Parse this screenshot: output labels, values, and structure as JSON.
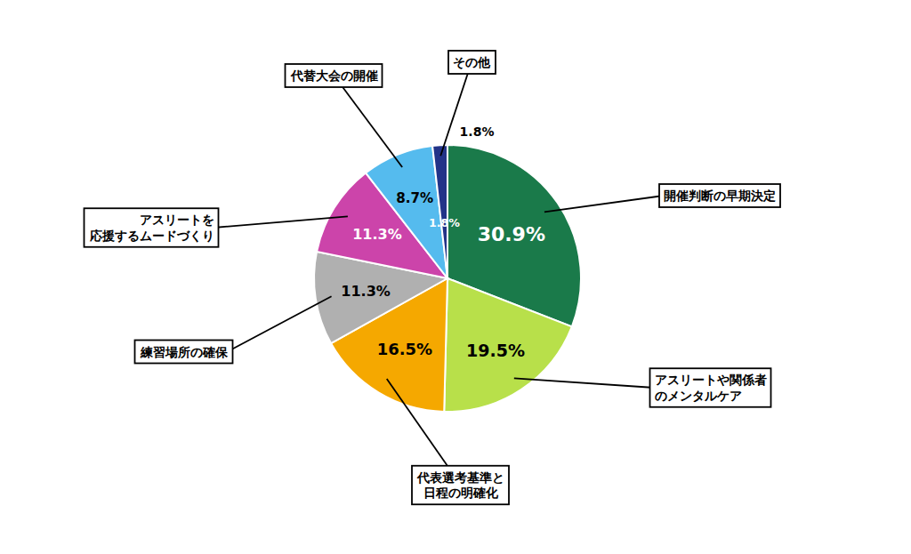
{
  "chart_data": {
    "type": "pie",
    "categories": [
      "開催判断の早期決定",
      "アスリートや関係者\nのメンタルケア",
      "代表選考基準と\n日程の明確化",
      "練習場所の確保",
      "アスリートを\n応援するムードづくり",
      "代替大会の開催",
      "その他"
    ],
    "values": [
      30.9,
      19.5,
      16.5,
      11.3,
      11.3,
      8.7,
      1.8
    ],
    "value_labels": [
      "30.9%",
      "19.5%",
      "16.5%",
      "11.3%",
      "11.3%",
      "8.7%",
      "1.8%"
    ],
    "colors": [
      "#1a7a4a",
      "#b8e04a",
      "#f5a800",
      "#b0b0b0",
      "#cc44aa",
      "#55bbee",
      "#223388"
    ],
    "data_labels": true,
    "annotations": [
      {
        "text": "1.8%",
        "category": "その他"
      }
    ]
  }
}
